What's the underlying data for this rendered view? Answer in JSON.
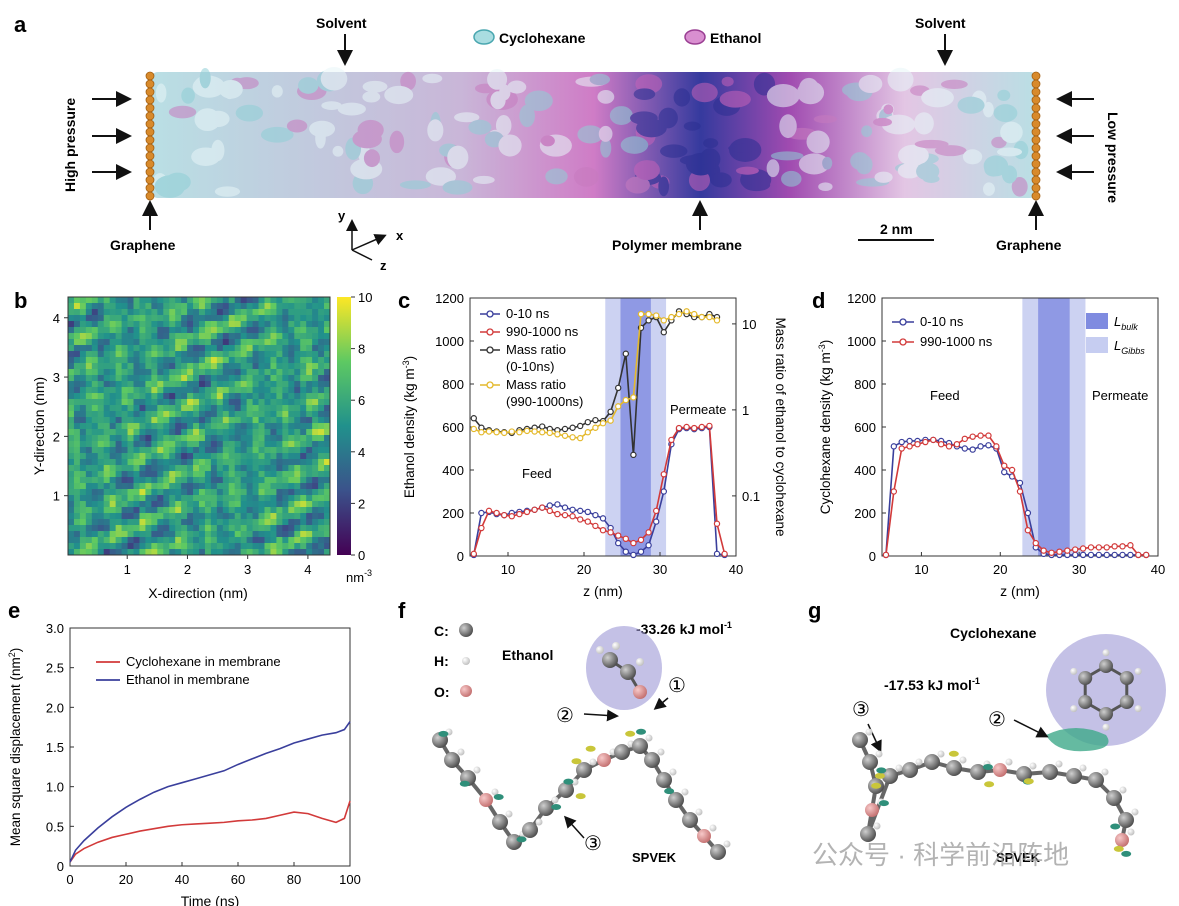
{
  "panel_letters": {
    "a": "a",
    "b": "b",
    "c": "c",
    "d": "d",
    "e": "e",
    "f": "f",
    "g": "g"
  },
  "panel_a": {
    "solvent_left": "Solvent",
    "solvent_right": "Solvent",
    "legend_cyclohexane": "Cyclohexane",
    "legend_ethanol": "Ethanol",
    "high_pressure": "High pressure",
    "low_pressure": "Low pressure",
    "graphene_left": "Graphene",
    "graphene_right": "Graphene",
    "polymer_membrane": "Polymer membrane",
    "scale_bar": "2 nm",
    "axis_x": "x",
    "axis_y": "y",
    "axis_z": "z",
    "colors": {
      "cyclohexane": "#9fd6dc",
      "ethanol": "#c77bbf",
      "membrane": "#2a2d8f",
      "graphene": "#d88a2b"
    }
  },
  "panel_b": {
    "xlabel": "X-direction (nm)",
    "ylabel": "Y-direction (nm)",
    "xticks": [
      "1",
      "2",
      "3",
      "4"
    ],
    "yticks": [
      "1",
      "2",
      "3",
      "4"
    ],
    "colorbar_ticks": [
      "0",
      "2",
      "4",
      "6",
      "8",
      "10"
    ],
    "colorbar_unit": "nm",
    "colorbar_unit_exp": "-3"
  },
  "chart_data": [
    {
      "type": "line",
      "panel": "c",
      "title": "",
      "xlabel": "z (nm)",
      "ylabel": "Ethanol density (kg m",
      "ylabel_exp": "-3",
      "ylabel_close": ")",
      "y2label": "Mass ratio of ethanol to cyclohexane",
      "xlim": [
        5,
        40
      ],
      "ylim": [
        0,
        1200
      ],
      "y2lim_log": [
        0.02,
        20
      ],
      "xticks": [
        "10",
        "20",
        "30",
        "40"
      ],
      "yticks": [
        "0",
        "200",
        "400",
        "600",
        "800",
        "1000",
        "1200"
      ],
      "y2ticks": [
        "0.1",
        "1",
        "10"
      ],
      "y2tick_values": [
        0.1,
        1,
        10
      ],
      "regions": [
        {
          "name": "Gibbs",
          "from": 22.8,
          "to": 30.8
        },
        {
          "name": "bulk",
          "from": 24.8,
          "to": 28.8
        }
      ],
      "annotations": [
        "Feed",
        "Permeate"
      ],
      "series": [
        {
          "name": "0-10 ns",
          "axis": "y",
          "color": "#3a3f9c",
          "x": [
            5.5,
            6.5,
            7.5,
            8.5,
            9.5,
            10.5,
            11.5,
            12.5,
            13.5,
            14.5,
            15.5,
            16.5,
            17.5,
            18.5,
            19.5,
            20.5,
            21.5,
            22.5,
            23.5,
            24.5,
            25.5,
            26.5,
            27.5,
            28.5,
            29.5,
            30.5,
            31.5,
            32.5,
            33.5,
            34.5,
            35.5,
            36.5,
            37.5,
            38.5
          ],
          "values": [
            5,
            200,
            205,
            195,
            190,
            200,
            205,
            210,
            215,
            225,
            235,
            240,
            225,
            215,
            210,
            205,
            190,
            175,
            130,
            60,
            20,
            5,
            20,
            50,
            160,
            300,
            520,
            590,
            595,
            590,
            595,
            600,
            10,
            5
          ]
        },
        {
          "name": "990-1000 ns",
          "axis": "y",
          "color": "#d23a3a",
          "x": [
            5.5,
            6.5,
            7.5,
            8.5,
            9.5,
            10.5,
            11.5,
            12.5,
            13.5,
            14.5,
            15.5,
            16.5,
            17.5,
            18.5,
            19.5,
            20.5,
            21.5,
            22.5,
            23.5,
            24.5,
            25.5,
            26.5,
            27.5,
            28.5,
            29.5,
            30.5,
            31.5,
            32.5,
            33.5,
            34.5,
            35.5,
            36.5,
            37.5,
            38.5
          ],
          "values": [
            10,
            130,
            210,
            200,
            190,
            185,
            195,
            205,
            215,
            225,
            210,
            195,
            190,
            185,
            170,
            160,
            140,
            120,
            110,
            95,
            80,
            60,
            75,
            110,
            210,
            380,
            540,
            595,
            600,
            595,
            600,
            605,
            150,
            10
          ]
        },
        {
          "name": "Mass ratio\n(0-10ns)",
          "axis": "y2",
          "color": "#333333",
          "x": [
            5.5,
            6.5,
            7.5,
            8.5,
            9.5,
            10.5,
            11.5,
            12.5,
            13.5,
            14.5,
            15.5,
            16.5,
            17.5,
            18.5,
            19.5,
            20.5,
            21.5,
            22.5,
            23.5,
            24.5,
            25.5,
            26.5,
            27.5,
            28.5,
            29.5,
            30.5,
            31.5,
            32.5,
            33.5,
            34.5,
            35.5,
            36.5,
            37.5
          ],
          "values": [
            0.8,
            0.62,
            0.58,
            0.56,
            0.55,
            0.54,
            0.58,
            0.6,
            0.62,
            0.64,
            0.6,
            0.58,
            0.6,
            0.62,
            0.65,
            0.72,
            0.76,
            0.74,
            0.95,
            1.8,
            4.5,
            0.3,
            9,
            11,
            12,
            8,
            11,
            14,
            13,
            12,
            12,
            13,
            12
          ]
        },
        {
          "name": "Mass ratio\n(990-1000ns)",
          "axis": "y2",
          "color": "#e4b92c",
          "x": [
            5.5,
            6.5,
            7.5,
            8.5,
            9.5,
            10.5,
            11.5,
            12.5,
            13.5,
            14.5,
            15.5,
            16.5,
            17.5,
            18.5,
            19.5,
            20.5,
            21.5,
            22.5,
            23.5,
            24.5,
            25.5,
            26.5,
            27.5,
            28.5,
            29.5,
            30.5,
            31.5,
            32.5,
            33.5,
            34.5,
            35.5,
            36.5,
            37.5
          ],
          "values": [
            0.6,
            0.55,
            0.56,
            0.55,
            0.54,
            0.56,
            0.55,
            0.57,
            0.56,
            0.55,
            0.54,
            0.52,
            0.5,
            0.48,
            0.47,
            0.55,
            0.62,
            0.7,
            0.75,
            1.1,
            1.3,
            1.4,
            13,
            13,
            12.5,
            11,
            12,
            13,
            14,
            13,
            12,
            12,
            11
          ]
        }
      ]
    },
    {
      "type": "line",
      "panel": "d",
      "xlabel": "z (nm)",
      "ylabel": "Cyclohexane density (kg m",
      "ylabel_exp": "-3",
      "ylabel_close": ")",
      "xlim": [
        5,
        40
      ],
      "ylim": [
        0,
        1200
      ],
      "xticks": [
        "10",
        "20",
        "30",
        "40"
      ],
      "yticks": [
        "0",
        "200",
        "400",
        "600",
        "800",
        "1000",
        "1200"
      ],
      "regions": [
        {
          "name": "Gibbs",
          "from": 22.8,
          "to": 30.8
        },
        {
          "name": "bulk",
          "from": 24.8,
          "to": 28.8
        }
      ],
      "annotations": [
        "Feed",
        "Permeate"
      ],
      "legend_regions": [
        "L",
        "bulk",
        "L",
        "Gibbs"
      ],
      "series": [
        {
          "name": "0-10 ns",
          "color": "#3a3f9c",
          "x": [
            5.5,
            6.5,
            7.5,
            8.5,
            9.5,
            10.5,
            11.5,
            12.5,
            13.5,
            14.5,
            15.5,
            16.5,
            17.5,
            18.5,
            19.5,
            20.5,
            21.5,
            22.5,
            23.5,
            24.5,
            25.5,
            26.5,
            27.5,
            28.5,
            29.5,
            30.5,
            31.5,
            32.5,
            33.5,
            34.5,
            35.5,
            36.5,
            37.5,
            38.5
          ],
          "values": [
            5,
            510,
            530,
            535,
            535,
            540,
            540,
            535,
            525,
            510,
            500,
            495,
            510,
            515,
            500,
            390,
            370,
            340,
            200,
            40,
            10,
            5,
            5,
            5,
            5,
            5,
            5,
            5,
            5,
            5,
            5,
            5,
            5,
            5
          ]
        },
        {
          "name": "990-1000 ns",
          "color": "#d23a3a",
          "x": [
            5.5,
            6.5,
            7.5,
            8.5,
            9.5,
            10.5,
            11.5,
            12.5,
            13.5,
            14.5,
            15.5,
            16.5,
            17.5,
            18.5,
            19.5,
            20.5,
            21.5,
            22.5,
            23.5,
            24.5,
            25.5,
            26.5,
            27.5,
            28.5,
            29.5,
            30.5,
            31.5,
            32.5,
            33.5,
            34.5,
            35.5,
            36.5,
            37.5,
            38.5
          ],
          "values": [
            5,
            300,
            500,
            510,
            520,
            530,
            540,
            520,
            510,
            520,
            545,
            555,
            560,
            560,
            510,
            420,
            400,
            300,
            120,
            60,
            25,
            15,
            20,
            25,
            30,
            35,
            40,
            40,
            40,
            45,
            45,
            50,
            5,
            5
          ]
        }
      ]
    },
    {
      "type": "line",
      "panel": "e",
      "xlabel": "Time (ns)",
      "ylabel": "Mean square displacement (nm",
      "ylabel_exp": "2",
      "ylabel_close": ")",
      "xlim": [
        0,
        100
      ],
      "ylim": [
        0,
        3.0
      ],
      "xticks": [
        "0",
        "20",
        "40",
        "60",
        "80",
        "100"
      ],
      "yticks": [
        "0",
        "0.5",
        "1.0",
        "1.5",
        "2.0",
        "2.5",
        "3.0"
      ],
      "series": [
        {
          "name": "Cyclohexane in membrane",
          "color": "#d23a3a",
          "x": [
            0,
            2,
            5,
            10,
            15,
            20,
            25,
            30,
            35,
            40,
            45,
            50,
            55,
            60,
            65,
            70,
            75,
            80,
            85,
            90,
            95,
            98,
            100
          ],
          "values": [
            0.05,
            0.15,
            0.22,
            0.3,
            0.36,
            0.4,
            0.44,
            0.47,
            0.5,
            0.52,
            0.53,
            0.54,
            0.55,
            0.57,
            0.58,
            0.6,
            0.64,
            0.68,
            0.66,
            0.6,
            0.55,
            0.6,
            0.82
          ]
        },
        {
          "name": "Ethanol in membrane",
          "color": "#3a3f9c",
          "x": [
            0,
            2,
            5,
            10,
            15,
            20,
            25,
            30,
            35,
            40,
            45,
            50,
            55,
            60,
            65,
            70,
            75,
            80,
            85,
            90,
            95,
            98,
            100
          ],
          "values": [
            0.05,
            0.2,
            0.32,
            0.48,
            0.62,
            0.74,
            0.84,
            0.93,
            1.0,
            1.05,
            1.1,
            1.15,
            1.2,
            1.28,
            1.35,
            1.42,
            1.48,
            1.55,
            1.6,
            1.65,
            1.68,
            1.72,
            1.82
          ]
        }
      ]
    }
  ],
  "panel_f": {
    "legend_c": "C:",
    "legend_h": "H:",
    "legend_o": "O:",
    "molecule": "Ethanol",
    "energy": "-33.26 kJ mol",
    "energy_exp": "-1",
    "marker1": "①",
    "marker2": "②",
    "marker3": "③",
    "polymer": "SPVEK"
  },
  "panel_g": {
    "molecule": "Cyclohexane",
    "energy": "-17.53 kJ mol",
    "energy_exp": "-1",
    "marker2": "②",
    "marker3": "③",
    "polymer": "SPVEK"
  },
  "watermark": "公众号 · 科学前沿阵地"
}
